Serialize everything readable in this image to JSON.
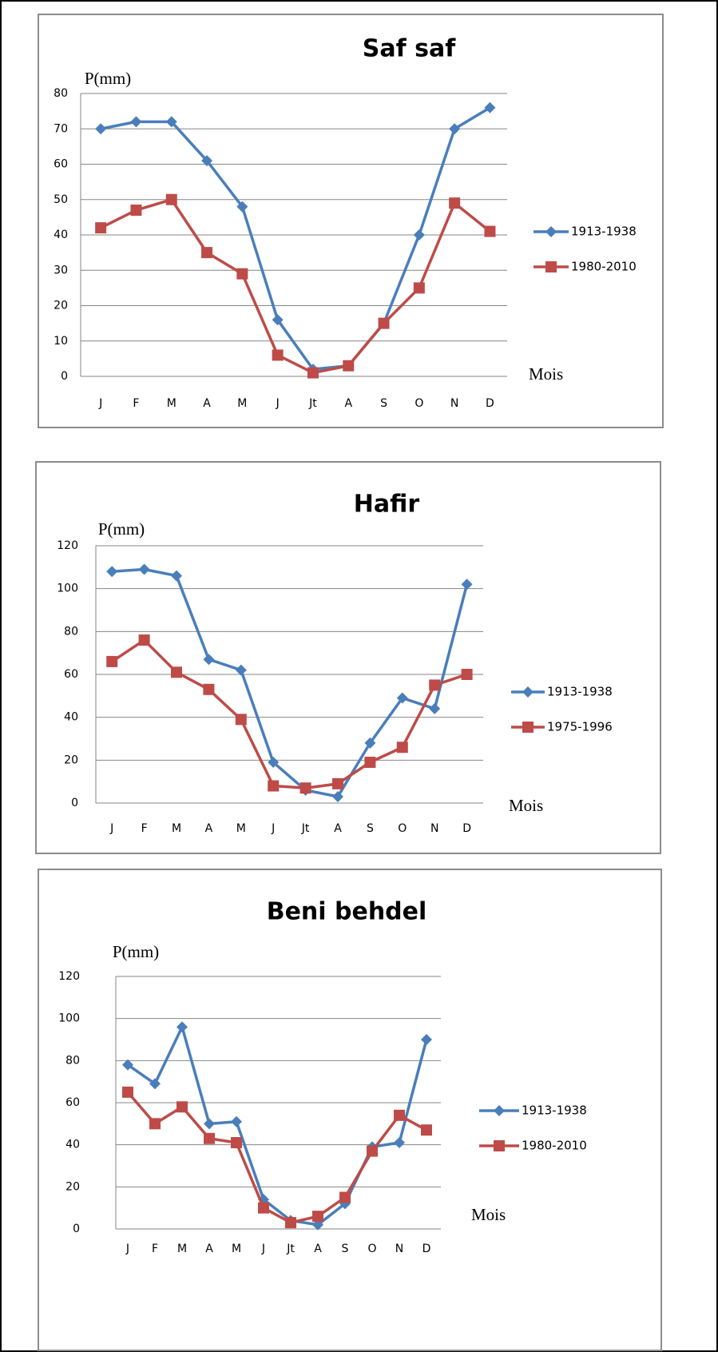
{
  "chart_data": [
    {
      "type": "line",
      "title": "Saf saf",
      "y_label": "P(mm)",
      "x_label": "Mois",
      "categories": [
        "J",
        "F",
        "M",
        "A",
        "M",
        "J",
        "Jt",
        "A",
        "S",
        "O",
        "N",
        "D"
      ],
      "ylim": [
        0,
        80
      ],
      "yticks": [
        0,
        10,
        20,
        30,
        40,
        50,
        60,
        70,
        80
      ],
      "grid": true,
      "legend": "right",
      "series": [
        {
          "name": "1913-1938",
          "color": "#4a7ebb",
          "marker": "diamond",
          "values": [
            70,
            72,
            72,
            61,
            48,
            16,
            2,
            3,
            15,
            40,
            70,
            76
          ]
        },
        {
          "name": "1980-2010",
          "color": "#be4b48",
          "marker": "square",
          "values": [
            42,
            47,
            50,
            35,
            29,
            6,
            1,
            3,
            15,
            25,
            49,
            41
          ]
        }
      ]
    },
    {
      "type": "line",
      "title": "Hafir",
      "y_label": "P(mm)",
      "x_label": "Mois",
      "categories": [
        "J",
        "F",
        "M",
        "A",
        "M",
        "J",
        "Jt",
        "A",
        "S",
        "O",
        "N",
        "D"
      ],
      "ylim": [
        0,
        120
      ],
      "yticks": [
        0,
        20,
        40,
        60,
        80,
        100,
        120
      ],
      "grid": true,
      "legend": "right",
      "series": [
        {
          "name": "1913-1938",
          "color": "#4a7ebb",
          "marker": "diamond",
          "values": [
            108,
            109,
            106,
            67,
            62,
            19,
            6,
            3,
            28,
            49,
            44,
            102
          ]
        },
        {
          "name": "1975-1996",
          "color": "#be4b48",
          "marker": "square",
          "values": [
            66,
            76,
            61,
            53,
            39,
            8,
            7,
            9,
            19,
            26,
            55,
            60
          ]
        }
      ]
    },
    {
      "type": "line",
      "title": "Beni behdel",
      "y_label": "P(mm)",
      "x_label": "Mois",
      "categories": [
        "J",
        "F",
        "M",
        "A",
        "M",
        "J",
        "Jt",
        "A",
        "S",
        "O",
        "N",
        "D"
      ],
      "ylim": [
        0,
        120
      ],
      "yticks": [
        0,
        20,
        40,
        60,
        80,
        100,
        120
      ],
      "grid": true,
      "legend": "right",
      "series": [
        {
          "name": "1913-1938",
          "color": "#4a7ebb",
          "marker": "diamond",
          "values": [
            78,
            69,
            96,
            50,
            51,
            14,
            4,
            2,
            12,
            39,
            41,
            90
          ]
        },
        {
          "name": "1980-2010",
          "color": "#be4b48",
          "marker": "square",
          "values": [
            65,
            50,
            58,
            43,
            41,
            10,
            3,
            6,
            15,
            37,
            54,
            47
          ]
        }
      ]
    }
  ]
}
